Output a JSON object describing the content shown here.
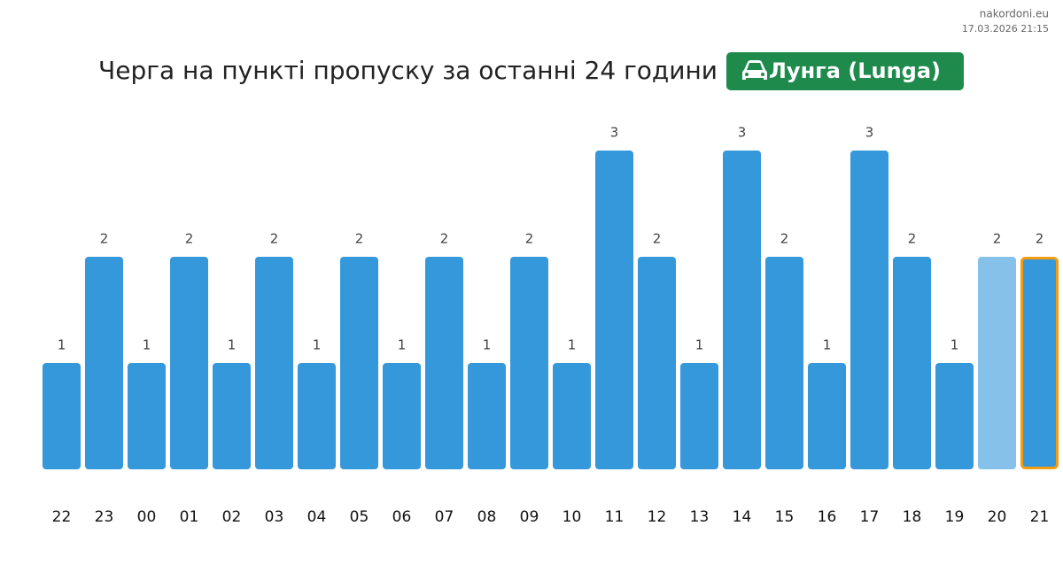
{
  "site": "nakordoni.eu",
  "timestamp": "17.03.2026 21:15",
  "chart_data": {
    "type": "bar",
    "title": "Черга на пункті пропуску за останні 24 години",
    "badge": "Лунга (Lunga)",
    "categories": [
      "22",
      "23",
      "00",
      "01",
      "02",
      "03",
      "04",
      "05",
      "06",
      "07",
      "08",
      "09",
      "10",
      "11",
      "12",
      "13",
      "14",
      "15",
      "16",
      "17",
      "18",
      "19",
      "20",
      "21"
    ],
    "values": [
      1,
      2,
      1,
      2,
      1,
      2,
      1,
      2,
      1,
      2,
      1,
      2,
      1,
      3,
      2,
      1,
      3,
      2,
      1,
      3,
      2,
      1,
      2,
      2
    ],
    "colors": [
      "#3498db",
      "#3498db",
      "#3498db",
      "#3498db",
      "#3498db",
      "#3498db",
      "#3498db",
      "#3498db",
      "#3498db",
      "#3498db",
      "#3498db",
      "#3498db",
      "#3498db",
      "#3498db",
      "#3498db",
      "#3498db",
      "#3498db",
      "#3498db",
      "#3498db",
      "#3498db",
      "#3498db",
      "#3498db",
      "#85c1e9",
      "#3498db"
    ],
    "edgecolors": [
      null,
      null,
      null,
      null,
      null,
      null,
      null,
      null,
      null,
      null,
      null,
      null,
      null,
      null,
      null,
      null,
      null,
      null,
      null,
      null,
      null,
      null,
      null,
      "#f39c12"
    ],
    "badge_color": "#1e8a4c"
  }
}
